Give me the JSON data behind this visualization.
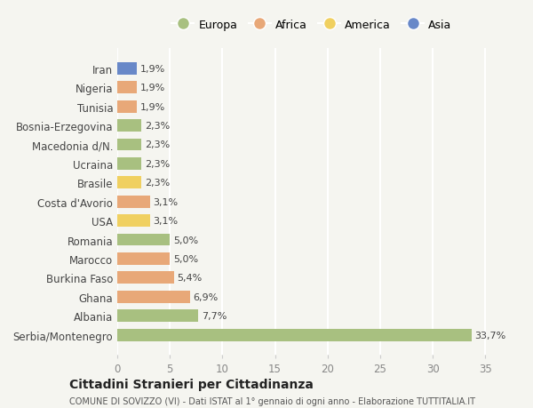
{
  "countries": [
    "Serbia/Montenegro",
    "Albania",
    "Ghana",
    "Burkina Faso",
    "Marocco",
    "Romania",
    "USA",
    "Costa d'Avorio",
    "Brasile",
    "Ucraina",
    "Macedonia d/N.",
    "Bosnia-Erzegovina",
    "Tunisia",
    "Nigeria",
    "Iran"
  ],
  "values": [
    33.7,
    7.7,
    6.9,
    5.4,
    5.0,
    5.0,
    3.1,
    3.1,
    2.3,
    2.3,
    2.3,
    2.3,
    1.9,
    1.9,
    1.9
  ],
  "labels": [
    "33,7%",
    "7,7%",
    "6,9%",
    "5,4%",
    "5,0%",
    "5,0%",
    "3,1%",
    "3,1%",
    "2,3%",
    "2,3%",
    "2,3%",
    "2,3%",
    "1,9%",
    "1,9%",
    "1,9%"
  ],
  "colors": [
    "#a8c080",
    "#a8c080",
    "#e8a878",
    "#e8a878",
    "#e8a878",
    "#a8c080",
    "#f0d060",
    "#e8a878",
    "#f0d060",
    "#a8c080",
    "#a8c080",
    "#a8c080",
    "#e8a878",
    "#e8a878",
    "#6888c8"
  ],
  "legend": [
    {
      "label": "Europa",
      "color": "#a8c080"
    },
    {
      "label": "Africa",
      "color": "#e8a878"
    },
    {
      "label": "America",
      "color": "#f0d060"
    },
    {
      "label": "Asia",
      "color": "#6888c8"
    }
  ],
  "xlim": [
    0,
    37
  ],
  "xticks": [
    0,
    5,
    10,
    15,
    20,
    25,
    30,
    35
  ],
  "title": "Cittadini Stranieri per Cittadinanza",
  "subtitle": "COMUNE DI SOVIZZO (VI) - Dati ISTAT al 1° gennaio di ogni anno - Elaborazione TUTTITALIA.IT",
  "bg_color": "#f5f5f0",
  "grid_color": "#ffffff",
  "bar_height": 0.65
}
